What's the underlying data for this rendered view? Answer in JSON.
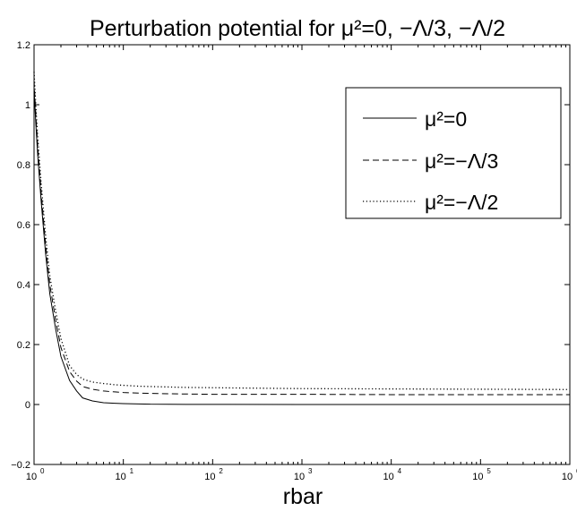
{
  "chart_data": {
    "type": "line",
    "title": "Perturbation potential for μ²=0, −Λ/3, −Λ/2",
    "xlabel": "rbar",
    "ylabel": "",
    "xscale": "log",
    "xlim": [
      1,
      1000000
    ],
    "ylim": [
      -0.2,
      1.2
    ],
    "grid": false,
    "legend_position": "top-right",
    "yticks": [
      "−0.2",
      "0",
      "0.2",
      "0.4",
      "0.6",
      "0.8",
      "1",
      "1.2"
    ],
    "xticks": [
      {
        "base": "10",
        "exp": "0"
      },
      {
        "base": "10",
        "exp": "1"
      },
      {
        "base": "10",
        "exp": "2"
      },
      {
        "base": "10",
        "exp": "3"
      },
      {
        "base": "10",
        "exp": "4"
      },
      {
        "base": "10",
        "exp": "5"
      },
      {
        "base": "10",
        "exp": "6"
      }
    ],
    "series": [
      {
        "name": "μ²=0",
        "style": "solid",
        "x": [
          1.0,
          1.05,
          1.1,
          1.2,
          1.35,
          1.5,
          1.75,
          2.0,
          2.5,
          3.0,
          3.5,
          4.5,
          6.0,
          8.0,
          10,
          15,
          20,
          50,
          100,
          1000,
          10000,
          100000,
          1000000
        ],
        "y": [
          1.05,
          0.93,
          0.83,
          0.68,
          0.5,
          0.37,
          0.25,
          0.16,
          0.08,
          0.045,
          0.022,
          0.012,
          0.006,
          0.004,
          0.003,
          0.002,
          0.001,
          0.0005,
          0.0003,
          0.0,
          0.0,
          0.0,
          0.0
        ]
      },
      {
        "name": "μ²=−Λ/3",
        "style": "dashed",
        "x": [
          1.0,
          1.05,
          1.1,
          1.2,
          1.35,
          1.5,
          1.75,
          2.0,
          2.5,
          3.0,
          3.5,
          4.5,
          6.0,
          8.0,
          10,
          15,
          20,
          50,
          100,
          1000,
          10000,
          100000,
          1000000
        ],
        "y": [
          1.08,
          0.96,
          0.86,
          0.71,
          0.53,
          0.4,
          0.28,
          0.19,
          0.11,
          0.078,
          0.06,
          0.051,
          0.045,
          0.042,
          0.04,
          0.038,
          0.037,
          0.035,
          0.034,
          0.034,
          0.033,
          0.033,
          0.033
        ]
      },
      {
        "name": "μ²=−Λ/2",
        "style": "dotted",
        "x": [
          1.0,
          1.05,
          1.1,
          1.2,
          1.35,
          1.5,
          1.75,
          2.0,
          2.5,
          3.0,
          3.5,
          4.5,
          6.0,
          8.0,
          10,
          15,
          20,
          50,
          100,
          1000,
          10000,
          100000,
          1000000
        ],
        "y": [
          1.11,
          0.99,
          0.89,
          0.74,
          0.56,
          0.43,
          0.31,
          0.22,
          0.13,
          0.1,
          0.085,
          0.075,
          0.07,
          0.066,
          0.064,
          0.061,
          0.06,
          0.057,
          0.056,
          0.053,
          0.052,
          0.051,
          0.05
        ]
      }
    ]
  }
}
